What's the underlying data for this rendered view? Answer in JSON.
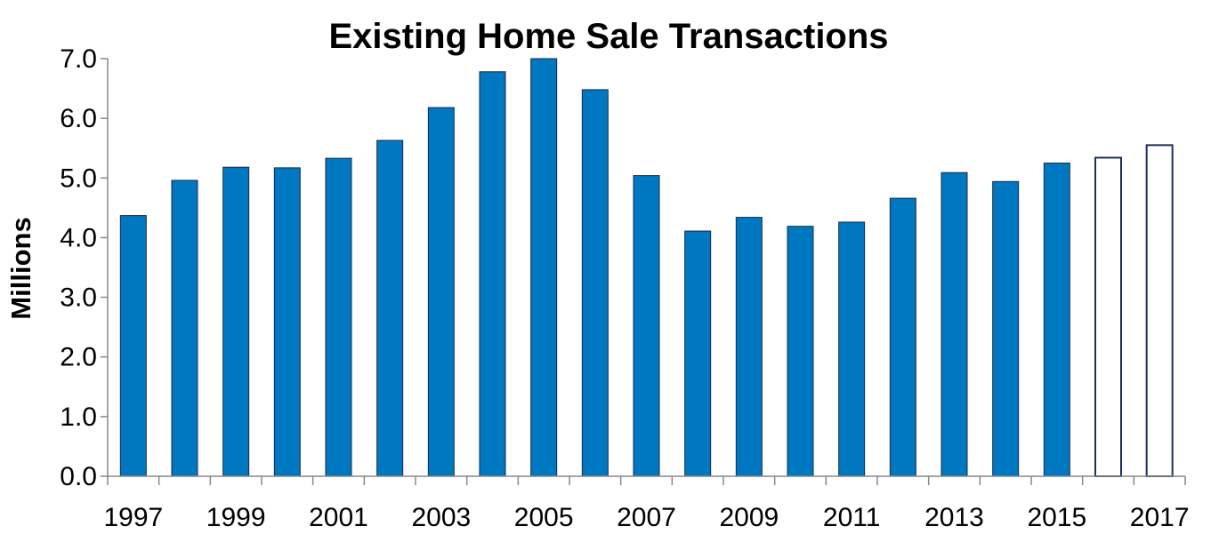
{
  "chart_data": {
    "type": "bar",
    "title": "Existing Home Sale Transactions",
    "xlabel": "",
    "ylabel": "Millions",
    "ylim": [
      0,
      7
    ],
    "grid": false,
    "legend": "none",
    "y_ticks": [
      "0.0",
      "1.0",
      "2.0",
      "3.0",
      "4.0",
      "5.0",
      "6.0",
      "7.0"
    ],
    "x_tick_labels": [
      "1997",
      "1999",
      "2001",
      "2003",
      "2005",
      "2007",
      "2009",
      "2011",
      "2013",
      "2015",
      "2017"
    ],
    "categories": [
      "1997",
      "1998",
      "1999",
      "2000",
      "2001",
      "2002",
      "2003",
      "2004",
      "2005",
      "2006",
      "2007",
      "2008",
      "2009",
      "2010",
      "2011",
      "2012",
      "2013",
      "2014",
      "2015",
      "2016",
      "2017"
    ],
    "series": [
      {
        "values": [
          4.37,
          4.96,
          5.18,
          5.17,
          5.33,
          5.63,
          6.18,
          6.78,
          7.0,
          6.48,
          5.04,
          4.11,
          4.34,
          4.19,
          4.26,
          4.66,
          5.09,
          4.94,
          5.25,
          5.34,
          5.55
        ],
        "style": [
          "filled",
          "filled",
          "filled",
          "filled",
          "filled",
          "filled",
          "filled",
          "filled",
          "filled",
          "filled",
          "filled",
          "filled",
          "filled",
          "filled",
          "filled",
          "filled",
          "filled",
          "filled",
          "filled",
          "outline",
          "outline"
        ]
      }
    ],
    "colors": {
      "bar_fill": "#0077c1",
      "bar_stroke": "#1a2a4a",
      "outline_fill": "#ffffff",
      "outline_stroke": "#1b2f5a",
      "axis": "#888888",
      "text": "#000000"
    }
  }
}
